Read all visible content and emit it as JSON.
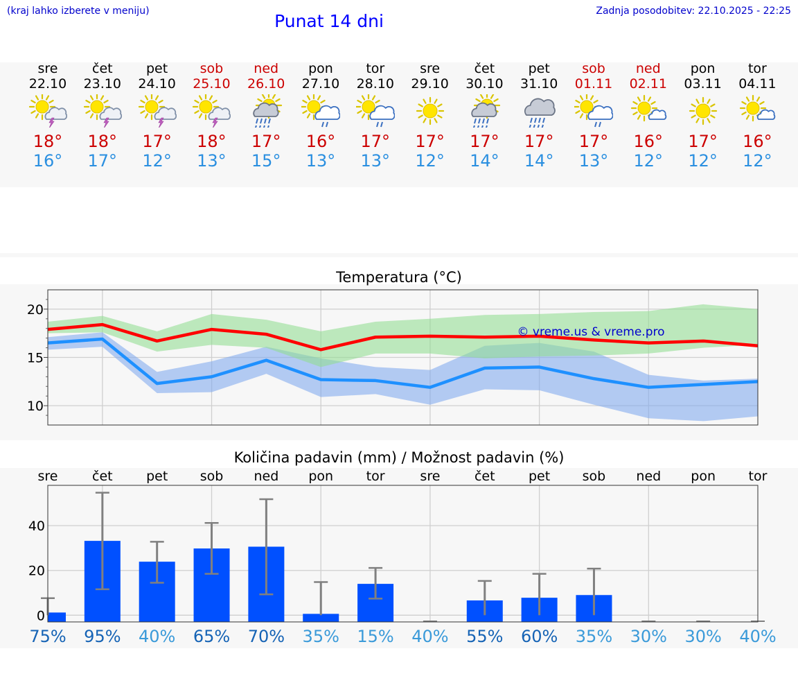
{
  "header": {
    "note": "(kraj lahko izberete v meniju)",
    "title": "Punat 14 dni",
    "updated": "Zadnja posodobitev: 22.10.2025 - 22:25"
  },
  "days": [
    {
      "name": "sre",
      "date": "22.10",
      "weekend": false,
      "icon": "sun-cloud-thunder-icon",
      "max": "18°",
      "min": "16°"
    },
    {
      "name": "čet",
      "date": "23.10",
      "weekend": false,
      "icon": "sun-cloud-thunder-icon",
      "max": "18°",
      "min": "17°"
    },
    {
      "name": "pet",
      "date": "24.10",
      "weekend": false,
      "icon": "sun-cloud-thunder-icon",
      "max": "17°",
      "min": "12°"
    },
    {
      "name": "sob",
      "date": "25.10",
      "weekend": true,
      "icon": "sun-cloud-thunder-icon",
      "max": "18°",
      "min": "13°"
    },
    {
      "name": "ned",
      "date": "26.10",
      "weekend": true,
      "icon": "sun-cloud-heavy-rain-icon",
      "max": "17°",
      "min": "15°"
    },
    {
      "name": "pon",
      "date": "27.10",
      "weekend": false,
      "icon": "sun-cloud-rain-icon",
      "max": "16°",
      "min": "13°"
    },
    {
      "name": "tor",
      "date": "28.10",
      "weekend": false,
      "icon": "sun-cloud-rain-icon",
      "max": "17°",
      "min": "13°"
    },
    {
      "name": "sre",
      "date": "29.10",
      "weekend": false,
      "icon": "sun-icon",
      "max": "17°",
      "min": "12°"
    },
    {
      "name": "čet",
      "date": "30.10",
      "weekend": false,
      "icon": "sun-cloud-heavy-rain-icon",
      "max": "17°",
      "min": "14°"
    },
    {
      "name": "pet",
      "date": "31.10",
      "weekend": false,
      "icon": "cloud-heavy-rain-icon",
      "max": "17°",
      "min": "14°"
    },
    {
      "name": "sob",
      "date": "01.11",
      "weekend": true,
      "icon": "sun-cloud-rain-icon",
      "max": "17°",
      "min": "13°"
    },
    {
      "name": "ned",
      "date": "02.11",
      "weekend": true,
      "icon": "sun-small-cloud-icon",
      "max": "16°",
      "min": "12°"
    },
    {
      "name": "pon",
      "date": "03.11",
      "weekend": false,
      "icon": "sun-icon",
      "max": "17°",
      "min": "12°"
    },
    {
      "name": "tor",
      "date": "04.11",
      "weekend": false,
      "icon": "sun-small-cloud-icon",
      "max": "16°",
      "min": "12°"
    }
  ],
  "colors": {
    "max_line": "#ff0000",
    "min_line": "#1e90ff",
    "max_band": "#90dc90",
    "min_band": "#7fa8ee",
    "bar": "#0050ff",
    "whisker": "#808080",
    "prob_high": "#1563b5",
    "prob_low": "#3a9ad9",
    "watermark": "#0000cc"
  },
  "chart_data": [
    {
      "type": "line",
      "title": "Temperatura (°C)",
      "xlabel": "",
      "ylabel": "",
      "ylim": [
        8,
        22
      ],
      "yticks": [
        10,
        15,
        20
      ],
      "watermark": "© vreme.us & vreme.pro",
      "grid": true,
      "x": [
        0,
        1,
        2,
        3,
        4,
        5,
        6,
        7,
        8,
        9,
        10,
        11,
        12,
        13
      ],
      "series": [
        {
          "role": "max",
          "values": [
            17.9,
            18.4,
            16.7,
            17.9,
            17.4,
            15.8,
            17.1,
            17.2,
            17.1,
            17.2,
            16.8,
            16.5,
            16.7,
            16.2
          ],
          "band_low": [
            17.5,
            17.6,
            15.6,
            16.3,
            16.0,
            14.0,
            15.4,
            15.4,
            14.9,
            15.1,
            15.2,
            15.4,
            16.0,
            16.3
          ],
          "band_high": [
            18.7,
            19.3,
            17.7,
            19.5,
            18.9,
            17.7,
            18.7,
            19.0,
            19.4,
            19.5,
            19.7,
            19.8,
            20.5,
            20.0
          ]
        },
        {
          "role": "min",
          "values": [
            16.5,
            16.9,
            12.3,
            13.0,
            14.7,
            12.7,
            12.6,
            11.9,
            13.9,
            14.0,
            12.8,
            11.9,
            12.2,
            12.5
          ],
          "band_low": [
            15.8,
            16.1,
            11.3,
            11.4,
            13.3,
            10.9,
            11.2,
            10.1,
            11.7,
            11.6,
            10.1,
            8.7,
            8.4,
            8.9
          ],
          "band_high": [
            17.1,
            17.6,
            13.5,
            14.6,
            16.1,
            14.9,
            14.0,
            13.7,
            16.2,
            16.5,
            15.6,
            13.2,
            12.6,
            12.8
          ]
        }
      ]
    },
    {
      "type": "bar",
      "title": "Količina padavin (mm) / Možnost padavin (%)",
      "xlabel": "",
      "ylabel": "",
      "ylim": [
        -3,
        58
      ],
      "yticks": [
        0,
        20,
        40
      ],
      "grid": true,
      "categories": [
        "sre",
        "čet",
        "pet",
        "sob",
        "ned",
        "pon",
        "tor",
        "sre",
        "čet",
        "pet",
        "sob",
        "ned",
        "pon",
        "tor"
      ],
      "values": [
        1.2,
        33.2,
        23.9,
        29.8,
        30.6,
        0.6,
        14.0,
        0,
        6.6,
        7.8,
        9.0,
        0,
        0,
        0
      ],
      "err_low": [
        0,
        11.6,
        14.5,
        18.5,
        9.3,
        0,
        7.4,
        0,
        0,
        0,
        0,
        0,
        0,
        0
      ],
      "err_high": [
        7.6,
        54.7,
        32.8,
        41.2,
        51.8,
        14.8,
        21.1,
        0,
        15.3,
        18.5,
        20.8,
        0,
        0,
        0
      ],
      "probability": [
        "75%",
        "95%",
        "40%",
        "65%",
        "70%",
        "35%",
        "15%",
        "40%",
        "55%",
        "60%",
        "35%",
        "30%",
        "30%",
        "40%"
      ]
    }
  ]
}
